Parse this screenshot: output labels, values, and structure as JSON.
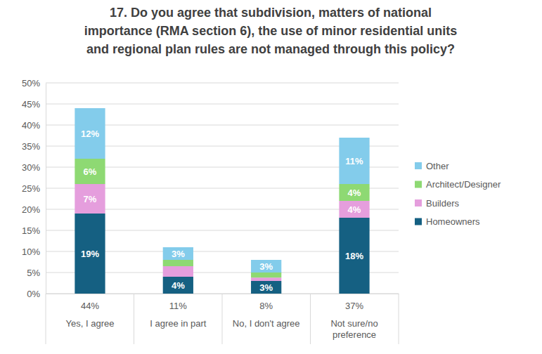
{
  "chart_data": {
    "type": "bar",
    "title": "17. Do you agree that subdivision, matters of national\nimportance (RMA section 6), the use of minor residential units\nand regional plan rules are not managed through this policy?",
    "categories": [
      "Yes, I agree",
      "I agree in part",
      "No, I don't agree",
      "Not sure/no preference"
    ],
    "total_labels": [
      "44%",
      "11%",
      "8%",
      "37%"
    ],
    "stacked": true,
    "data_labels": true,
    "grid": true,
    "legend": "right",
    "ylim": [
      0,
      50
    ],
    "yticks": [
      {
        "value": 0,
        "label": "0%"
      },
      {
        "value": 5,
        "label": "5%"
      },
      {
        "value": 10,
        "label": "10%"
      },
      {
        "value": 15,
        "label": "15%"
      },
      {
        "value": 20,
        "label": "20%"
      },
      {
        "value": 25,
        "label": "25%"
      },
      {
        "value": 30,
        "label": "30%"
      },
      {
        "value": 35,
        "label": "35%"
      },
      {
        "value": 40,
        "label": "40%"
      },
      {
        "value": 45,
        "label": "45%"
      },
      {
        "value": 50,
        "label": "50%"
      }
    ],
    "series": [
      {
        "name": "Homeowners",
        "color": "#156082",
        "values": [
          19,
          4,
          3,
          18
        ],
        "value_labels": [
          "19%",
          "4%",
          "3%",
          "18%"
        ]
      },
      {
        "name": "Builders",
        "color": "#e59edd",
        "values": [
          7,
          2.5,
          0.8,
          4
        ],
        "value_labels": [
          "7%",
          null,
          null,
          "4%"
        ]
      },
      {
        "name": "Architect/Designer",
        "color": "#8ed973",
        "values": [
          6,
          1.5,
          1.2,
          4
        ],
        "value_labels": [
          "6%",
          null,
          null,
          "4%"
        ]
      },
      {
        "name": "Other",
        "color": "#83cceb",
        "values": [
          12,
          3,
          3,
          11
        ],
        "value_labels": [
          "12%",
          "3%",
          "3%",
          "11%"
        ]
      }
    ]
  }
}
